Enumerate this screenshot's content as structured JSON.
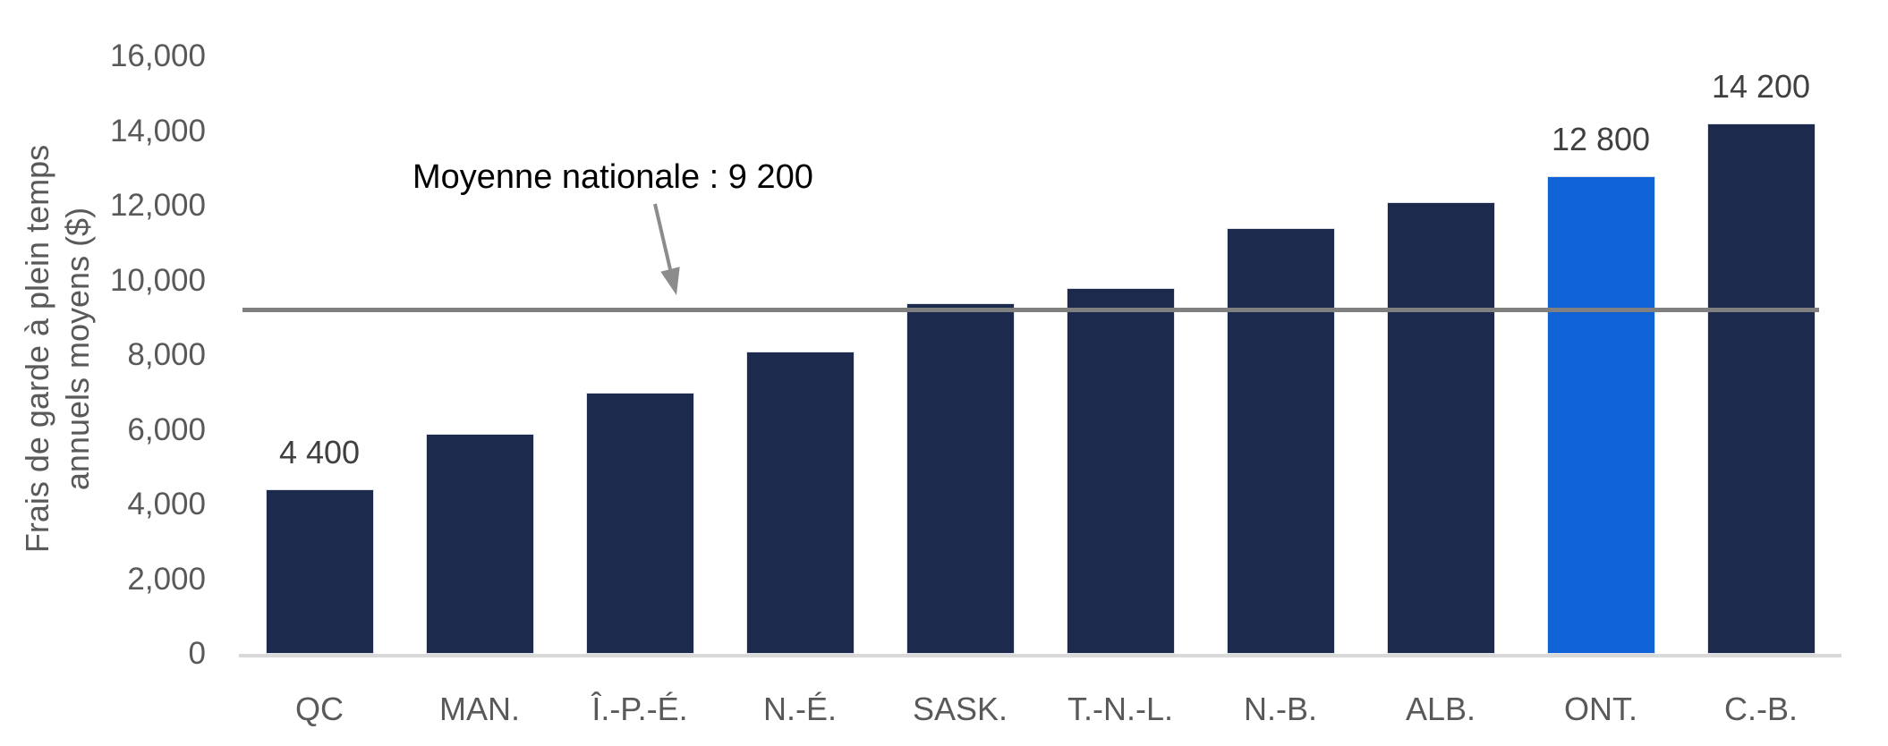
{
  "chart_data": {
    "type": "bar",
    "categories": [
      "QC",
      "MAN.",
      "Î.-P.-É.",
      "N.-É.",
      "SASK.",
      "T.-N.-L.",
      "N.-B.",
      "ALB.",
      "ONT.",
      "C.-B."
    ],
    "values": [
      4400,
      5900,
      7000,
      8100,
      9400,
      9800,
      11400,
      12100,
      12800,
      14200
    ],
    "bar_value_labels": [
      "4 400",
      "",
      "",
      "",
      "",
      "",
      "",
      "",
      "12 800",
      "14 200"
    ],
    "highlight_category": "ONT.",
    "ylabel_line1": "Frais de garde à plein temps",
    "ylabel_line2": "annuels moyens ($)",
    "ylim": [
      0,
      16000
    ],
    "ytick_values": [
      0,
      2000,
      4000,
      6000,
      8000,
      10000,
      12000,
      14000,
      16000
    ],
    "ytick_labels": [
      "0",
      "2,000",
      "4,000",
      "6,000",
      "8,000",
      "10,000",
      "12,000",
      "14,000",
      "16,000"
    ],
    "grid": false,
    "legend": "none",
    "reference_line": {
      "value": 9200,
      "label": "Moyenne nationale : 9 200"
    },
    "colors": {
      "bar": "#1C2B4D",
      "bar_highlight": "#1063D6",
      "reference_line": "#808080",
      "axis_baseline": "#D9D9D9",
      "tick_text": "#595959",
      "axis_title_text": "#595959",
      "bar_label_text": "#404040",
      "annotation_text": "#000000",
      "arrow": "#8C8C8C"
    }
  }
}
